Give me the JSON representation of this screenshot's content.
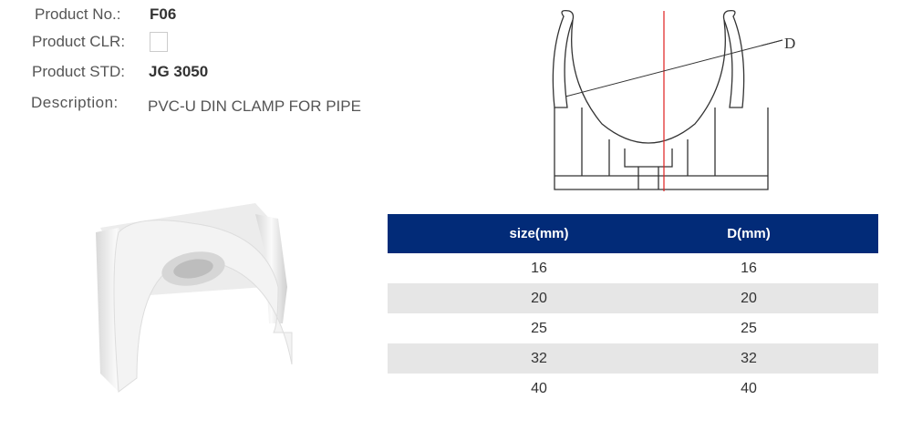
{
  "info": {
    "product_no": {
      "label": "Product No.:",
      "value": "F06"
    },
    "product_clr": {
      "label": "Product CLR:",
      "value_color": "#ffffff"
    },
    "product_std": {
      "label": "Product STD:",
      "value": "JG 3050"
    },
    "description": {
      "label": "Description:",
      "value": "PVC-U DIN CLAMP FOR PIPE"
    }
  },
  "drawing": {
    "dimension_label": "D",
    "centerline_color": "#e02020"
  },
  "table": {
    "header_color": "#022b78",
    "columns": [
      "size(mm)",
      "D(mm)"
    ],
    "rows": [
      [
        "16",
        "16"
      ],
      [
        "20",
        "20"
      ],
      [
        "25",
        "25"
      ],
      [
        "32",
        "32"
      ],
      [
        "40",
        "40"
      ]
    ]
  }
}
